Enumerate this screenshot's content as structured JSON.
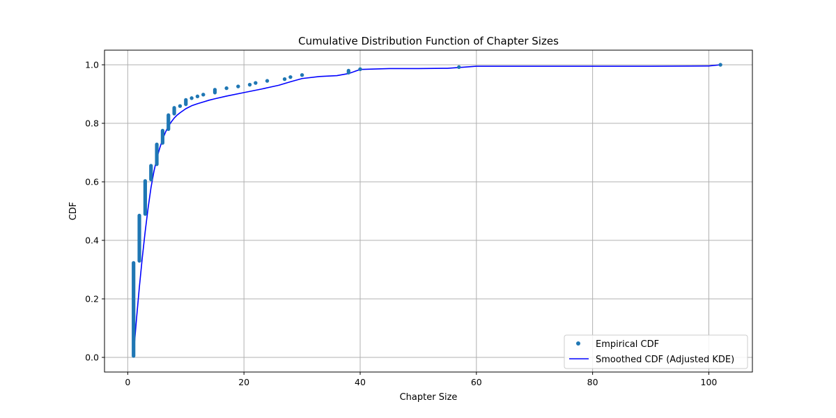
{
  "chart_data": {
    "type": "scatter",
    "title": "Cumulative Distribution Function of Chapter Sizes",
    "xlabel": "Chapter Size",
    "ylabel": "CDF",
    "xlim": [
      -4,
      107.5
    ],
    "ylim": [
      -0.05,
      1.05
    ],
    "x_ticks": [
      0,
      20,
      40,
      60,
      80,
      100
    ],
    "y_ticks": [
      0.0,
      0.2,
      0.4,
      0.6,
      0.8,
      1.0
    ],
    "x_tick_labels": [
      "0",
      "20",
      "40",
      "60",
      "80",
      "100"
    ],
    "y_tick_labels": [
      "0.0",
      "0.2",
      "0.4",
      "0.6",
      "0.8",
      "1.0"
    ],
    "grid": true,
    "legend_position": "bottom-right",
    "colors": {
      "empirical": "#1f77b4",
      "smoothed": "#0000ff"
    },
    "series": [
      {
        "name": "Empirical CDF",
        "kind": "points",
        "points": [
          {
            "x": 1,
            "y_from": 0.005,
            "y_to": 0.323
          },
          {
            "x": 2,
            "y_from": 0.33,
            "y_to": 0.485
          },
          {
            "x": 3,
            "y_from": 0.49,
            "y_to": 0.603
          },
          {
            "x": 4,
            "y_from": 0.608,
            "y_to": 0.655
          },
          {
            "x": 5,
            "y_from": 0.66,
            "y_to": 0.728
          },
          {
            "x": 6,
            "y_from": 0.733,
            "y_to": 0.775
          },
          {
            "x": 7,
            "y_from": 0.78,
            "y_to": 0.828
          },
          {
            "x": 8,
            "y_from": 0.833,
            "y_to": 0.853
          },
          {
            "x": 9,
            "y_from": 0.859,
            "y_to": 0.859
          },
          {
            "x": 10,
            "y_from": 0.865,
            "y_to": 0.88
          },
          {
            "x": 11,
            "y_from": 0.886,
            "y_to": 0.886
          },
          {
            "x": 12,
            "y_from": 0.892,
            "y_to": 0.892
          },
          {
            "x": 13,
            "y_from": 0.898,
            "y_to": 0.898
          },
          {
            "x": 15,
            "y_from": 0.905,
            "y_to": 0.915
          },
          {
            "x": 17,
            "y_from": 0.92,
            "y_to": 0.92
          },
          {
            "x": 19,
            "y_from": 0.926,
            "y_to": 0.926
          },
          {
            "x": 21,
            "y_from": 0.932,
            "y_to": 0.932
          },
          {
            "x": 22,
            "y_from": 0.938,
            "y_to": 0.938
          },
          {
            "x": 24,
            "y_from": 0.945,
            "y_to": 0.945
          },
          {
            "x": 27,
            "y_from": 0.951,
            "y_to": 0.951
          },
          {
            "x": 28,
            "y_from": 0.958,
            "y_to": 0.958
          },
          {
            "x": 30,
            "y_from": 0.965,
            "y_to": 0.965
          },
          {
            "x": 38,
            "y_from": 0.973,
            "y_to": 0.98
          },
          {
            "x": 40,
            "y_from": 0.985,
            "y_to": 0.985
          },
          {
            "x": 57,
            "y_from": 0.992,
            "y_to": 0.992
          },
          {
            "x": 102,
            "y_from": 1.0,
            "y_to": 1.0
          }
        ]
      },
      {
        "name": "Smoothed CDF (Adjusted KDE)",
        "kind": "line",
        "x": [
          1,
          1.5,
          2,
          2.5,
          3,
          3.5,
          4,
          4.5,
          5,
          5.5,
          6,
          6.5,
          7,
          7.5,
          8,
          8.5,
          9,
          10,
          11,
          12,
          13,
          14,
          15,
          17,
          20,
          23,
          26,
          28,
          30,
          33,
          36,
          38,
          40,
          45,
          50,
          55,
          58,
          60,
          70,
          80,
          90,
          100,
          102
        ],
        "values": [
          0.01,
          0.13,
          0.24,
          0.34,
          0.43,
          0.51,
          0.58,
          0.635,
          0.68,
          0.715,
          0.745,
          0.77,
          0.79,
          0.805,
          0.818,
          0.828,
          0.836,
          0.85,
          0.86,
          0.867,
          0.873,
          0.879,
          0.884,
          0.893,
          0.905,
          0.917,
          0.93,
          0.942,
          0.953,
          0.96,
          0.963,
          0.97,
          0.984,
          0.987,
          0.987,
          0.988,
          0.992,
          0.995,
          0.995,
          0.995,
          0.995,
          0.996,
          1.0
        ]
      }
    ]
  }
}
